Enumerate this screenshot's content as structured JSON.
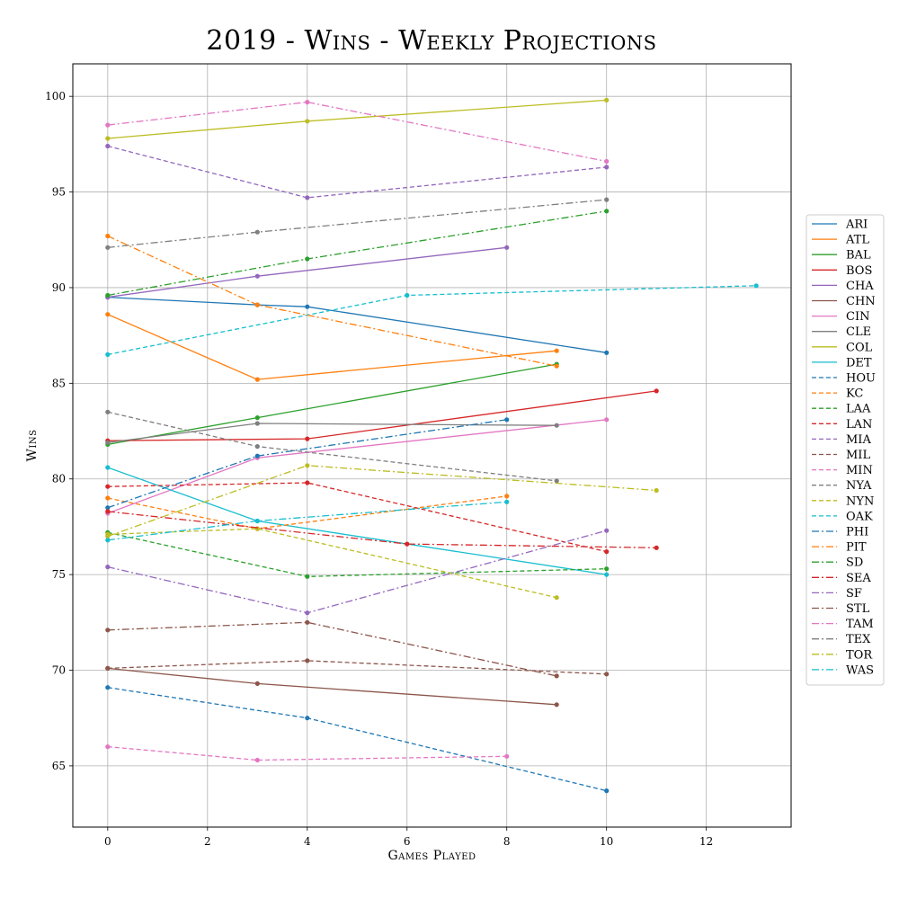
{
  "chart_data": {
    "type": "line",
    "title": "2019 - Wins - Weekly Projections",
    "xlabel": "Games Played",
    "ylabel": "Wins",
    "xlim": [
      -0.7,
      13.7
    ],
    "ylim": [
      61.8,
      101.7
    ],
    "x_ticks": [
      0,
      2,
      4,
      6,
      8,
      10,
      12
    ],
    "y_ticks": [
      65,
      70,
      75,
      80,
      85,
      90,
      95,
      100
    ],
    "grid": true,
    "legend_position": "right",
    "series": [
      {
        "name": "ARI",
        "color": "#1f77b4",
        "style": "solid",
        "x": [
          0,
          3,
          4,
          10
        ],
        "y": [
          89.5,
          89.1,
          89.0,
          86.6
        ]
      },
      {
        "name": "ATL",
        "color": "#ff7f0e",
        "style": "solid",
        "x": [
          0,
          3,
          9
        ],
        "y": [
          88.6,
          85.2,
          86.7
        ]
      },
      {
        "name": "BAL",
        "color": "#2ca02c",
        "style": "solid",
        "x": [
          0,
          3,
          9
        ],
        "y": [
          81.8,
          83.2,
          86.0
        ]
      },
      {
        "name": "BOS",
        "color": "#d62728",
        "style": "solid",
        "x": [
          0,
          4,
          11
        ],
        "y": [
          82.0,
          82.1,
          84.6
        ]
      },
      {
        "name": "CHA",
        "color": "#9467bd",
        "style": "solid",
        "x": [
          0,
          3,
          8
        ],
        "y": [
          89.5,
          90.6,
          92.1
        ]
      },
      {
        "name": "CHN",
        "color": "#8c564b",
        "style": "solid",
        "x": [
          0,
          3,
          9
        ],
        "y": [
          70.1,
          69.3,
          68.2
        ]
      },
      {
        "name": "CIN",
        "color": "#e377c2",
        "style": "solid",
        "x": [
          0,
          3,
          10
        ],
        "y": [
          78.2,
          81.1,
          83.1
        ]
      },
      {
        "name": "CLE",
        "color": "#7f7f7f",
        "style": "solid",
        "x": [
          0,
          3,
          9
        ],
        "y": [
          81.9,
          82.9,
          82.8
        ]
      },
      {
        "name": "COL",
        "color": "#bcbd22",
        "style": "solid",
        "x": [
          0,
          4,
          10
        ],
        "y": [
          97.8,
          98.7,
          99.8
        ]
      },
      {
        "name": "DET",
        "color": "#17becf",
        "style": "solid",
        "x": [
          0,
          3,
          10
        ],
        "y": [
          80.6,
          77.8,
          75.0
        ]
      },
      {
        "name": "HOU",
        "color": "#1f77b4",
        "style": "dashed",
        "x": [
          0,
          4,
          10
        ],
        "y": [
          69.1,
          67.5,
          63.7
        ]
      },
      {
        "name": "KC",
        "color": "#ff7f0e",
        "style": "dashed",
        "x": [
          0,
          3,
          8
        ],
        "y": [
          79.0,
          77.4,
          79.1
        ]
      },
      {
        "name": "LAA",
        "color": "#2ca02c",
        "style": "dashed",
        "x": [
          0,
          4,
          10
        ],
        "y": [
          77.2,
          74.9,
          75.3
        ]
      },
      {
        "name": "LAN",
        "color": "#d62728",
        "style": "dashed",
        "x": [
          0,
          4,
          10
        ],
        "y": [
          79.6,
          79.8,
          76.2
        ]
      },
      {
        "name": "MIA",
        "color": "#9467bd",
        "style": "dashed",
        "x": [
          0,
          4,
          10
        ],
        "y": [
          97.4,
          94.7,
          96.3
        ]
      },
      {
        "name": "MIL",
        "color": "#8c564b",
        "style": "dashed",
        "x": [
          0,
          4,
          10
        ],
        "y": [
          70.1,
          70.5,
          69.8
        ]
      },
      {
        "name": "MIN",
        "color": "#e377c2",
        "style": "dashed",
        "x": [
          0,
          3,
          8
        ],
        "y": [
          66.0,
          65.3,
          65.5
        ]
      },
      {
        "name": "NYA",
        "color": "#7f7f7f",
        "style": "dashed",
        "x": [
          0,
          3,
          9
        ],
        "y": [
          83.5,
          81.7,
          79.9
        ]
      },
      {
        "name": "NYN",
        "color": "#bcbd22",
        "style": "dashed",
        "x": [
          0,
          3,
          9
        ],
        "y": [
          77.1,
          77.4,
          73.8
        ]
      },
      {
        "name": "OAK",
        "color": "#17becf",
        "style": "dashed",
        "x": [
          0,
          6,
          13
        ],
        "y": [
          86.5,
          89.6,
          90.1
        ]
      },
      {
        "name": "PHI",
        "color": "#1f77b4",
        "style": "dashdot",
        "x": [
          0,
          3,
          8
        ],
        "y": [
          78.5,
          81.2,
          83.1
        ]
      },
      {
        "name": "PIT",
        "color": "#ff7f0e",
        "style": "dashdot",
        "x": [
          0,
          3,
          9
        ],
        "y": [
          92.7,
          89.1,
          85.9
        ]
      },
      {
        "name": "SD",
        "color": "#2ca02c",
        "style": "dashdot",
        "x": [
          0,
          4,
          10
        ],
        "y": [
          89.6,
          91.5,
          94.0
        ]
      },
      {
        "name": "SEA",
        "color": "#d62728",
        "style": "dashdot",
        "x": [
          0,
          6,
          11
        ],
        "y": [
          78.3,
          76.6,
          76.4
        ]
      },
      {
        "name": "SF",
        "color": "#9467bd",
        "style": "dashdot",
        "x": [
          0,
          4,
          10
        ],
        "y": [
          75.4,
          73.0,
          77.3
        ]
      },
      {
        "name": "STL",
        "color": "#8c564b",
        "style": "dashdot",
        "x": [
          0,
          4,
          9
        ],
        "y": [
          72.1,
          72.5,
          69.7
        ]
      },
      {
        "name": "TAM",
        "color": "#e377c2",
        "style": "dashdot",
        "x": [
          0,
          4,
          10
        ],
        "y": [
          98.5,
          99.7,
          96.6
        ]
      },
      {
        "name": "TEX",
        "color": "#7f7f7f",
        "style": "dashdot",
        "x": [
          0,
          3,
          10
        ],
        "y": [
          92.1,
          92.9,
          94.6
        ]
      },
      {
        "name": "TOR",
        "color": "#bcbd22",
        "style": "dashdot",
        "x": [
          0,
          4,
          11
        ],
        "y": [
          77.0,
          80.7,
          79.4
        ]
      },
      {
        "name": "WAS",
        "color": "#17becf",
        "style": "dashdot",
        "x": [
          0,
          3,
          8
        ],
        "y": [
          76.8,
          77.8,
          78.8
        ]
      }
    ]
  }
}
